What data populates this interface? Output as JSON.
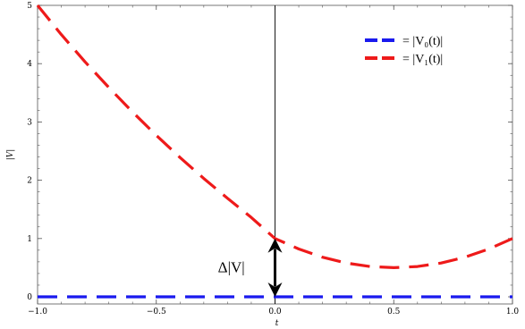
{
  "chart_data": {
    "type": "line",
    "xlabel": "t",
    "ylabel": "|V|",
    "xlim": [
      -1.0,
      1.0
    ],
    "ylim": [
      0,
      5
    ],
    "x_ticks": [
      -1.0,
      -0.5,
      0.0,
      0.5,
      1.0
    ],
    "x_tick_labels": [
      "−1.0",
      "−0.5",
      "0.0",
      "0.5",
      "1.0"
    ],
    "y_ticks": [
      0,
      1,
      2,
      3,
      4,
      5
    ],
    "y_tick_labels": [
      "0",
      "1",
      "2",
      "3",
      "4",
      "5"
    ],
    "grid": false,
    "legend_position": "top-right",
    "series": [
      {
        "name": "= |V₀(t)|",
        "color": "#1a1aee",
        "style": "dashed",
        "x": [
          -1.0,
          1.0
        ],
        "y": [
          0,
          0
        ]
      },
      {
        "name": "= |V₁(t)|",
        "color": "#ee1a1a",
        "style": "dashed",
        "x": [
          -1.0,
          -0.9,
          -0.8,
          -0.7,
          -0.6,
          -0.5,
          -0.4,
          -0.3,
          -0.2,
          -0.1,
          0.0,
          0.1,
          0.2,
          0.3,
          0.4,
          0.5,
          0.6,
          0.7,
          0.8,
          0.9,
          1.0
        ],
        "y": [
          5.0,
          4.5,
          4.03,
          3.59,
          3.17,
          2.77,
          2.39,
          2.03,
          1.69,
          1.36,
          1.0,
          0.82,
          0.68,
          0.58,
          0.52,
          0.5,
          0.52,
          0.58,
          0.68,
          0.82,
          1.0
        ]
      }
    ],
    "annotations": [
      {
        "text": "Δ|V|",
        "x": -0.15,
        "y": 0.5
      }
    ],
    "vline_x": 0.0,
    "arrow": {
      "x": 0.0,
      "y_from": 0.0,
      "y_to": 1.0
    }
  }
}
